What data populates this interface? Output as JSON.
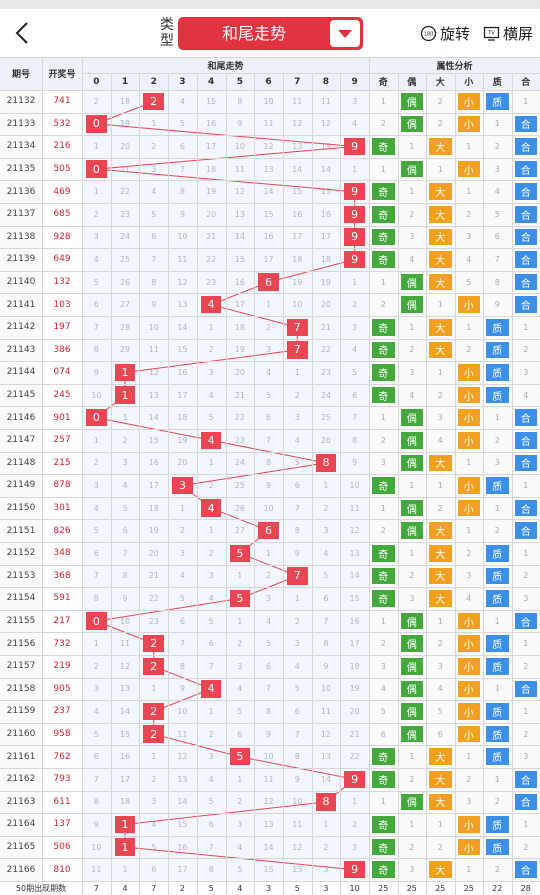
{
  "header": {
    "back_icon": "chevron-left-icon",
    "type_label": "类型",
    "selected": "和尾走势",
    "dropdown_icon": "triangle-down-icon",
    "rotate_label": "旋转",
    "rotate_icon": "rotate-180-icon",
    "landscape_label": "横屏",
    "landscape_icon": "tv-icon"
  },
  "table": {
    "col_issue": "期号",
    "col_draw": "开奖号",
    "group_trend": "和尾走势",
    "group_attr": "属性分析",
    "digits": [
      "0",
      "1",
      "2",
      "3",
      "4",
      "5",
      "6",
      "7",
      "8",
      "9"
    ],
    "attr_headers": [
      "奇",
      "偶",
      "大",
      "小",
      "质",
      "合"
    ],
    "rows": [
      {
        "issue": "21132",
        "draw": "741",
        "hit": 2,
        "miss": [
          "2",
          "18",
          "",
          "4",
          "15",
          "8",
          "10",
          "11",
          "11",
          "3"
        ],
        "a": [
          "1",
          "偶",
          "2",
          "小",
          "质",
          "1"
        ]
      },
      {
        "issue": "21133",
        "draw": "532",
        "hit": 0,
        "miss": [
          "",
          "19",
          "1",
          "5",
          "16",
          "9",
          "11",
          "12",
          "12",
          "4"
        ],
        "a": [
          "2",
          "偶",
          "2",
          "小",
          "1",
          "合"
        ]
      },
      {
        "issue": "21134",
        "draw": "216",
        "hit": 9,
        "miss": [
          "1",
          "20",
          "2",
          "6",
          "17",
          "10",
          "12",
          "13",
          "13",
          ""
        ],
        "a": [
          "奇",
          "1",
          "大",
          "1",
          "2",
          "合"
        ]
      },
      {
        "issue": "21135",
        "draw": "505",
        "hit": 0,
        "miss": [
          "",
          "21",
          "3",
          "7",
          "18",
          "11",
          "13",
          "14",
          "14",
          "1"
        ],
        "a": [
          "1",
          "偶",
          "1",
          "小",
          "3",
          "合"
        ]
      },
      {
        "issue": "21136",
        "draw": "469",
        "hit": 9,
        "miss": [
          "1",
          "22",
          "4",
          "8",
          "19",
          "12",
          "14",
          "15",
          "15",
          ""
        ],
        "a": [
          "奇",
          "1",
          "大",
          "1",
          "4",
          "合"
        ]
      },
      {
        "issue": "21137",
        "draw": "685",
        "hit": 9,
        "miss": [
          "2",
          "23",
          "5",
          "9",
          "20",
          "13",
          "15",
          "16",
          "16",
          ""
        ],
        "a": [
          "奇",
          "2",
          "大",
          "2",
          "5",
          "合"
        ]
      },
      {
        "issue": "21138",
        "draw": "928",
        "hit": 9,
        "miss": [
          "3",
          "24",
          "6",
          "10",
          "21",
          "14",
          "16",
          "17",
          "17",
          ""
        ],
        "a": [
          "奇",
          "3",
          "大",
          "3",
          "6",
          "合"
        ]
      },
      {
        "issue": "21139",
        "draw": "649",
        "hit": 9,
        "miss": [
          "4",
          "25",
          "7",
          "11",
          "22",
          "15",
          "17",
          "18",
          "18",
          ""
        ],
        "a": [
          "奇",
          "4",
          "大",
          "4",
          "7",
          "合"
        ]
      },
      {
        "issue": "21140",
        "draw": "132",
        "hit": 6,
        "miss": [
          "5",
          "26",
          "8",
          "12",
          "23",
          "16",
          "",
          "19",
          "19",
          "1"
        ],
        "a": [
          "1",
          "偶",
          "大",
          "5",
          "8",
          "合"
        ]
      },
      {
        "issue": "21141",
        "draw": "103",
        "hit": 4,
        "miss": [
          "6",
          "27",
          "9",
          "13",
          "",
          "17",
          "1",
          "10",
          "20",
          "2"
        ],
        "a": [
          "2",
          "偶",
          "1",
          "小",
          "9",
          "合"
        ]
      },
      {
        "issue": "21142",
        "draw": "197",
        "hit": 7,
        "miss": [
          "7",
          "28",
          "10",
          "14",
          "1",
          "18",
          "2",
          "",
          "21",
          "3"
        ],
        "a": [
          "奇",
          "1",
          "大",
          "1",
          "质",
          "1"
        ]
      },
      {
        "issue": "21143",
        "draw": "386",
        "hit": 7,
        "miss": [
          "8",
          "29",
          "11",
          "15",
          "2",
          "19",
          "3",
          "",
          "22",
          "4"
        ],
        "a": [
          "奇",
          "2",
          "大",
          "2",
          "质",
          "2"
        ]
      },
      {
        "issue": "21144",
        "draw": "074",
        "hit": 1,
        "miss": [
          "9",
          "",
          "12",
          "16",
          "3",
          "20",
          "4",
          "1",
          "23",
          "5"
        ],
        "a": [
          "奇",
          "3",
          "1",
          "小",
          "质",
          "3"
        ]
      },
      {
        "issue": "21145",
        "draw": "245",
        "hit": 1,
        "miss": [
          "10",
          "",
          "13",
          "17",
          "4",
          "21",
          "5",
          "2",
          "24",
          "6"
        ],
        "a": [
          "奇",
          "4",
          "2",
          "小",
          "质",
          "4"
        ]
      },
      {
        "issue": "21146",
        "draw": "901",
        "hit": 0,
        "miss": [
          "",
          "1",
          "14",
          "18",
          "5",
          "22",
          "6",
          "3",
          "25",
          "7"
        ],
        "a": [
          "1",
          "偶",
          "3",
          "小",
          "1",
          "合"
        ]
      },
      {
        "issue": "21147",
        "draw": "257",
        "hit": 4,
        "miss": [
          "1",
          "2",
          "15",
          "19",
          "",
          "23",
          "7",
          "4",
          "26",
          "8"
        ],
        "a": [
          "2",
          "偶",
          "4",
          "小",
          "2",
          "合"
        ]
      },
      {
        "issue": "21148",
        "draw": "215",
        "hit": 8,
        "miss": [
          "2",
          "3",
          "16",
          "20",
          "1",
          "24",
          "8",
          "5",
          "",
          "9"
        ],
        "a": [
          "3",
          "偶",
          "大",
          "1",
          "3",
          "合"
        ]
      },
      {
        "issue": "21149",
        "draw": "878",
        "hit": 3,
        "miss": [
          "3",
          "4",
          "17",
          "",
          "2",
          "25",
          "9",
          "6",
          "1",
          "10"
        ],
        "a": [
          "奇",
          "1",
          "1",
          "小",
          "质",
          "1"
        ]
      },
      {
        "issue": "21150",
        "draw": "301",
        "hit": 4,
        "miss": [
          "4",
          "5",
          "18",
          "1",
          "",
          "26",
          "10",
          "7",
          "2",
          "11"
        ],
        "a": [
          "1",
          "偶",
          "2",
          "小",
          "1",
          "合"
        ]
      },
      {
        "issue": "21151",
        "draw": "826",
        "hit": 6,
        "miss": [
          "5",
          "6",
          "19",
          "2",
          "1",
          "27",
          "",
          "8",
          "3",
          "12"
        ],
        "a": [
          "2",
          "偶",
          "大",
          "1",
          "2",
          "合"
        ]
      },
      {
        "issue": "21152",
        "draw": "348",
        "hit": 5,
        "miss": [
          "6",
          "7",
          "20",
          "3",
          "2",
          "",
          "1",
          "9",
          "4",
          "13"
        ],
        "a": [
          "奇",
          "1",
          "大",
          "2",
          "质",
          "1"
        ]
      },
      {
        "issue": "21153",
        "draw": "368",
        "hit": 7,
        "miss": [
          "7",
          "8",
          "21",
          "4",
          "3",
          "1",
          "2",
          "",
          "5",
          "14"
        ],
        "a": [
          "奇",
          "2",
          "大",
          "3",
          "质",
          "2"
        ]
      },
      {
        "issue": "21154",
        "draw": "591",
        "hit": 5,
        "miss": [
          "8",
          "9",
          "22",
          "5",
          "4",
          "",
          "3",
          "1",
          "6",
          "15"
        ],
        "a": [
          "奇",
          "3",
          "大",
          "4",
          "质",
          "3"
        ]
      },
      {
        "issue": "21155",
        "draw": "217",
        "hit": 0,
        "miss": [
          "",
          "10",
          "23",
          "6",
          "5",
          "1",
          "4",
          "2",
          "7",
          "16"
        ],
        "a": [
          "1",
          "偶",
          "1",
          "小",
          "1",
          "合"
        ]
      },
      {
        "issue": "21156",
        "draw": "732",
        "hit": 2,
        "miss": [
          "1",
          "11",
          "",
          "7",
          "6",
          "2",
          "5",
          "3",
          "8",
          "17"
        ],
        "a": [
          "2",
          "偶",
          "2",
          "小",
          "质",
          "1"
        ]
      },
      {
        "issue": "21157",
        "draw": "219",
        "hit": 2,
        "miss": [
          "2",
          "12",
          "",
          "8",
          "7",
          "3",
          "6",
          "4",
          "9",
          "18"
        ],
        "a": [
          "3",
          "偶",
          "3",
          "小",
          "质",
          "2"
        ]
      },
      {
        "issue": "21158",
        "draw": "905",
        "hit": 4,
        "miss": [
          "3",
          "13",
          "1",
          "9",
          "",
          "4",
          "7",
          "5",
          "10",
          "19"
        ],
        "a": [
          "4",
          "偶",
          "4",
          "小",
          "1",
          "合"
        ]
      },
      {
        "issue": "21159",
        "draw": "237",
        "hit": 2,
        "miss": [
          "4",
          "14",
          "",
          "10",
          "1",
          "5",
          "8",
          "6",
          "11",
          "20"
        ],
        "a": [
          "5",
          "偶",
          "5",
          "小",
          "质",
          "1"
        ]
      },
      {
        "issue": "21160",
        "draw": "958",
        "hit": 2,
        "miss": [
          "5",
          "15",
          "",
          "11",
          "2",
          "6",
          "9",
          "7",
          "12",
          "21"
        ],
        "a": [
          "6",
          "偶",
          "6",
          "小",
          "质",
          "2"
        ]
      },
      {
        "issue": "21161",
        "draw": "762",
        "hit": 5,
        "miss": [
          "6",
          "16",
          "1",
          "12",
          "3",
          "",
          "10",
          "8",
          "13",
          "22"
        ],
        "a": [
          "奇",
          "1",
          "大",
          "1",
          "质",
          "3"
        ]
      },
      {
        "issue": "21162",
        "draw": "793",
        "hit": 9,
        "miss": [
          "7",
          "17",
          "2",
          "13",
          "4",
          "1",
          "11",
          "9",
          "14",
          ""
        ],
        "a": [
          "奇",
          "2",
          "大",
          "2",
          "1",
          "合"
        ]
      },
      {
        "issue": "21163",
        "draw": "611",
        "hit": 8,
        "miss": [
          "8",
          "18",
          "3",
          "14",
          "5",
          "2",
          "12",
          "10",
          "",
          "1"
        ],
        "a": [
          "1",
          "偶",
          "大",
          "3",
          "2",
          "合"
        ]
      },
      {
        "issue": "21164",
        "draw": "137",
        "hit": 1,
        "miss": [
          "9",
          "",
          "4",
          "15",
          "6",
          "3",
          "13",
          "11",
          "1",
          "2"
        ],
        "a": [
          "奇",
          "1",
          "1",
          "小",
          "质",
          "1"
        ]
      },
      {
        "issue": "21165",
        "draw": "506",
        "hit": 1,
        "miss": [
          "10",
          "",
          "5",
          "16",
          "7",
          "4",
          "14",
          "12",
          "2",
          "3"
        ],
        "a": [
          "奇",
          "2",
          "2",
          "小",
          "质",
          "2"
        ]
      },
      {
        "issue": "21166",
        "draw": "810",
        "hit": 9,
        "miss": [
          "11",
          "1",
          "6",
          "17",
          "8",
          "5",
          "15",
          "13",
          "3",
          ""
        ],
        "a": [
          "奇",
          "3",
          "大",
          "1",
          "2",
          "合"
        ]
      }
    ],
    "footer": {
      "label": "50期出现期数",
      "values": [
        "7",
        "4",
        "7",
        "2",
        "5",
        "4",
        "3",
        "5",
        "3",
        "10",
        "25",
        "25",
        "25",
        "25",
        "22",
        "28"
      ]
    }
  },
  "colors": {
    "accent": "#e0333f",
    "hit_red": "#e94552",
    "odd_green": "#44a83d",
    "size_orange": "#f1a01f",
    "prime_blue": "#3b8fe6"
  }
}
